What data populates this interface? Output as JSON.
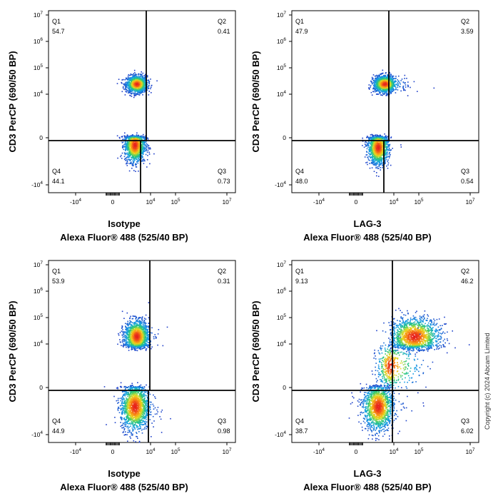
{
  "copyright": "Copyright (c) 2024 Abcam Limited",
  "y_ticks": [
    "10^7",
    "10^6",
    "10^5",
    "10^4",
    "0",
    "-10^4"
  ],
  "x_ticks": [
    "-10^4",
    "0",
    "10^4",
    "10^5",
    "10^7"
  ],
  "chart_data": [
    {
      "type": "scatter",
      "title": "",
      "xlabel_top": "Isotype",
      "xlabel": "Alexa Fluor® 488  (525/40 BP)",
      "ylabel": "CD3 PerCP (690/50 BP)",
      "quadrants": [
        {
          "name": "Q1",
          "value": "54.7"
        },
        {
          "name": "Q2",
          "value": "0.41"
        },
        {
          "name": "Q4",
          "value": "44.1"
        },
        {
          "name": "Q3",
          "value": "0.73"
        }
      ],
      "populations": [
        {
          "x": 2.5,
          "y": 4.4,
          "n": 1300,
          "sx": 0.55,
          "sy": 0.16
        },
        {
          "x": 2.3,
          "y": -0.15,
          "n": 1300,
          "sx": 0.55,
          "sy": 0.18
        }
      ]
    },
    {
      "type": "scatter",
      "title": "",
      "xlabel_top": "LAG-3",
      "xlabel": "Alexa Fluor® 488  (525/40 BP)",
      "ylabel": "CD3 PerCP (690/50 BP)",
      "quadrants": [
        {
          "name": "Q1",
          "value": "47.9"
        },
        {
          "name": "Q2",
          "value": "3.59"
        },
        {
          "name": "Q4",
          "value": "48.0"
        },
        {
          "name": "Q3",
          "value": "0.54"
        }
      ],
      "populations": [
        {
          "x": 3.0,
          "y": 4.4,
          "n": 1300,
          "sx": 0.6,
          "sy": 0.16
        },
        {
          "x": 2.3,
          "y": -0.2,
          "n": 1300,
          "sx": 0.55,
          "sy": 0.18
        }
      ]
    },
    {
      "type": "scatter",
      "title": "",
      "xlabel_top": "Isotype",
      "xlabel": "Alexa Fluor® 488  (525/40 BP)",
      "ylabel": "CD3 PerCP (690/50 BP)",
      "quadrants": [
        {
          "name": "Q1",
          "value": "53.9"
        },
        {
          "name": "Q2",
          "value": "0.31"
        },
        {
          "name": "Q4",
          "value": "44.9"
        },
        {
          "name": "Q3",
          "value": "0.98"
        }
      ],
      "populations": [
        {
          "x": 2.5,
          "y": 4.3,
          "n": 1500,
          "sx": 0.65,
          "sy": 0.3
        },
        {
          "x": 2.3,
          "y": -0.4,
          "n": 1500,
          "sx": 0.75,
          "sy": 0.25
        }
      ]
    },
    {
      "type": "scatter",
      "title": "",
      "xlabel_top": "LAG-3",
      "xlabel": "Alexa Fluor® 488  (525/40 BP)",
      "ylabel": "CD3 PerCP (690/50 BP)",
      "quadrants": [
        {
          "name": "Q1",
          "value": "9.13"
        },
        {
          "name": "Q2",
          "value": "46.2"
        },
        {
          "name": "Q4",
          "value": "38.7"
        },
        {
          "name": "Q3",
          "value": "6.02"
        }
      ],
      "populations": [
        {
          "x": 4.8,
          "y": 4.3,
          "n": 1500,
          "sx": 0.5,
          "sy": 0.35
        },
        {
          "x": 2.3,
          "y": -0.4,
          "n": 1500,
          "sx": 0.8,
          "sy": 0.25
        },
        {
          "x": 3.6,
          "y": 2.0,
          "n": 500,
          "sx": 0.7,
          "sy": 1.1
        }
      ]
    }
  ]
}
